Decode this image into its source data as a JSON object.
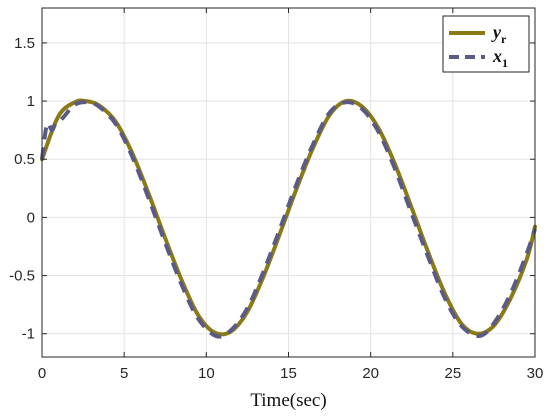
{
  "chart_data": {
    "type": "line",
    "xlabel": "Time(sec)",
    "ylabel": "",
    "xlim": [
      0,
      30
    ],
    "ylim": [
      -1.2,
      1.8
    ],
    "x_ticks": [
      0,
      5,
      10,
      15,
      20,
      25,
      30
    ],
    "x_tick_labels": [
      "0",
      "5",
      "10",
      "15",
      "20",
      "25",
      "30"
    ],
    "y_ticks": [
      -1,
      -0.5,
      0,
      0.5,
      1,
      1.5
    ],
    "y_tick_labels": [
      "-1",
      "-0.5",
      "0",
      "0.5",
      "1",
      "1.5"
    ],
    "grid": true,
    "legend_position": "top-right",
    "series": [
      {
        "name": "y_r",
        "legend_main": "y",
        "legend_sub": "r",
        "color": "#8b7b16",
        "style": "solid",
        "x": [
          0,
          1,
          2,
          2.65,
          3.5,
          4.5,
          5.5,
          6.5,
          7.5,
          8.5,
          9.5,
          10.5,
          11.5,
          12.5,
          13.5,
          14.5,
          15.5,
          16.5,
          17.5,
          18.5,
          19.5,
          20.5,
          21.5,
          22.5,
          23.5,
          24.5,
          25.5,
          26.5,
          27.5,
          28.5,
          29.5,
          30
        ],
        "y": [
          0.5,
          0.87,
          0.99,
          1.0,
          0.96,
          0.82,
          0.55,
          0.2,
          -0.18,
          -0.54,
          -0.84,
          -0.99,
          -0.98,
          -0.81,
          -0.5,
          -0.13,
          0.25,
          0.6,
          0.88,
          1.0,
          0.95,
          0.76,
          0.45,
          0.08,
          -0.3,
          -0.65,
          -0.91,
          -1.0,
          -0.93,
          -0.7,
          -0.36,
          -0.08
        ]
      },
      {
        "name": "x_1",
        "legend_main": "x",
        "legend_sub": "1",
        "color": "#5a5a86",
        "style": "dashed",
        "x": [
          0,
          0.3,
          0.6,
          0.8,
          1.0,
          1.3,
          2,
          2.8,
          3.5,
          4.5,
          5.5,
          6.5,
          7.5,
          8.5,
          9.5,
          10.6,
          11.5,
          12.5,
          13.5,
          14.5,
          15.5,
          16.5,
          17.5,
          18.5,
          19.5,
          20.5,
          21.5,
          22.5,
          23.5,
          24.5,
          25.5,
          26.6,
          27.5,
          28.5,
          29.5,
          30
        ],
        "y": [
          0.5,
          0.8,
          0.75,
          0.8,
          0.82,
          0.86,
          0.97,
          0.99,
          0.95,
          0.8,
          0.52,
          0.16,
          -0.22,
          -0.58,
          -0.87,
          -1.02,
          -0.97,
          -0.78,
          -0.46,
          -0.09,
          0.29,
          0.63,
          0.9,
          0.99,
          0.93,
          0.73,
          0.41,
          0.03,
          -0.34,
          -0.69,
          -0.93,
          -1.02,
          -0.91,
          -0.66,
          -0.31,
          -0.1
        ]
      }
    ]
  }
}
